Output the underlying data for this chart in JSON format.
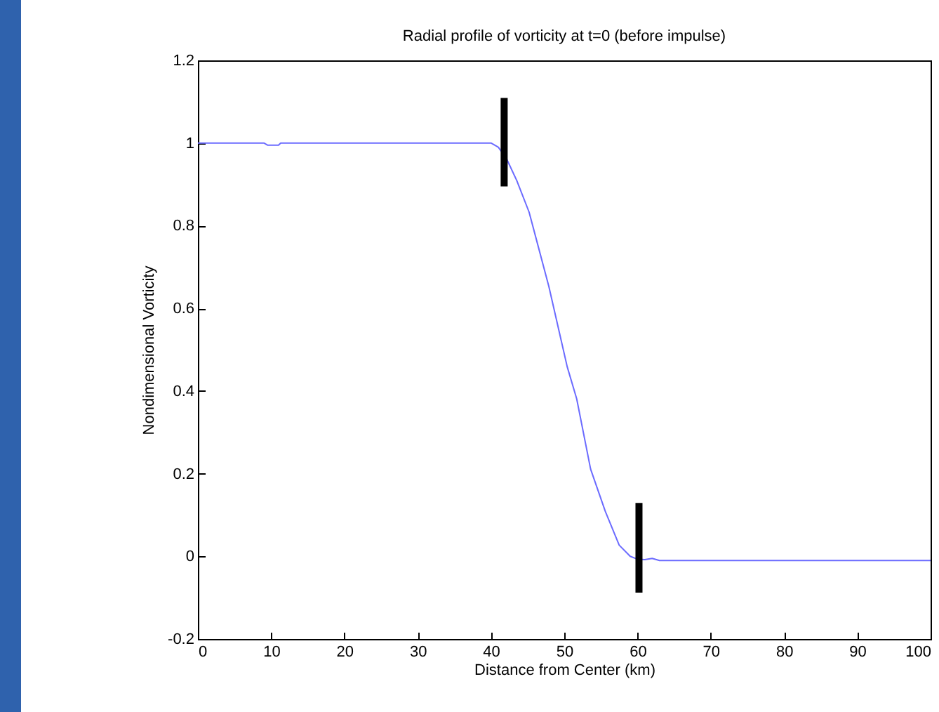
{
  "chart_data": {
    "type": "line",
    "title": "Radial profile of vorticity at t=0 (before impulse)",
    "xlabel": "Distance from Center (km)",
    "ylabel": "Nondimensional Vorticity",
    "xlim": [
      0,
      100
    ],
    "xticks": [
      0,
      10,
      20,
      30,
      40,
      50,
      60,
      70,
      80,
      90,
      100
    ],
    "ylim": [
      -0.2,
      1.2
    ],
    "yticks": [
      -0.2,
      0,
      0.2,
      0.4,
      0.6,
      0.8,
      1,
      1.2
    ],
    "grid": false,
    "series": [
      {
        "color": "#6b6bff",
        "x": [
          0,
          9,
          9.5,
          11,
          11.3,
          20,
          30,
          38,
          40,
          41,
          42.1,
          43.5,
          45.2,
          47.9,
          50.4,
          51.7,
          53.6,
          55.6,
          57.5,
          59,
          60,
          61,
          62,
          63,
          70,
          80,
          90,
          100
        ],
        "values": [
          1,
          1,
          0.995,
          0.995,
          1,
          1,
          1,
          1,
          1,
          0.99,
          0.963,
          0.91,
          0.833,
          0.653,
          0.459,
          0.381,
          0.211,
          0.109,
          0.027,
          0,
          -0.007,
          -0.008,
          -0.005,
          -0.01,
          -0.01,
          -0.01,
          -0.01,
          -0.01
        ]
      },
      {
        "color": "#000000",
        "x": [
          41.8,
          41.8
        ],
        "values": [
          0.895,
          1.109
        ]
      },
      {
        "color": "#000000",
        "x": [
          60.2,
          60.2
        ],
        "values": [
          -0.088,
          0.129
        ]
      }
    ]
  }
}
